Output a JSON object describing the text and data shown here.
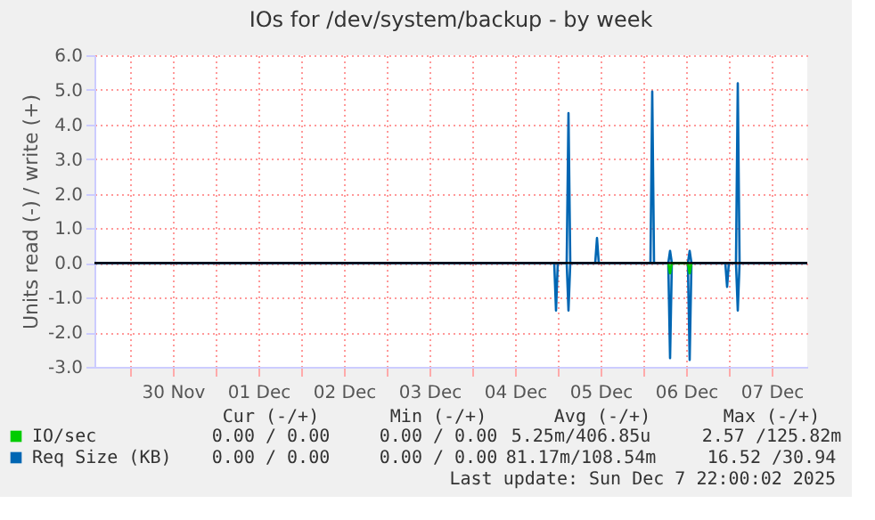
{
  "chart_data": {
    "type": "line",
    "title": "IOs for /dev/system/backup - by week",
    "ylabel": "Units read (-) / write (+)",
    "x": [
      "2025-11-29T14:00",
      "2025-12-04T23:00",
      "2025-12-04T23:30",
      "2025-12-05T00:00",
      "2025-12-05T02:30",
      "2025-12-05T03:00",
      "2025-12-05T03:30",
      "2025-12-05T10:30",
      "2025-12-05T11:00",
      "2025-12-05T11:30",
      "2025-12-06T02:00",
      "2025-12-06T02:30",
      "2025-12-06T03:00",
      "2025-12-06T07:00",
      "2025-12-06T07:30",
      "2025-12-06T08:00",
      "2025-12-06T12:30",
      "2025-12-06T13:00",
      "2025-12-06T13:30",
      "2025-12-06T23:00",
      "2025-12-06T23:30",
      "2025-12-07T00:00",
      "2025-12-07T02:00",
      "2025-12-07T02:30",
      "2025-12-07T03:00",
      "2025-12-07T22:00"
    ],
    "series": [
      {
        "name": "Req Size (KB)",
        "color": "#0066b3",
        "values": [
          0,
          0,
          0,
          0,
          0,
          4.33,
          0,
          0,
          0.72,
          0,
          0,
          4.95,
          0,
          0,
          0.35,
          0,
          0,
          0.35,
          0,
          0,
          0,
          0,
          0,
          5.19,
          0,
          0
        ]
      },
      {
        "color": "#0066b3",
        "values": [
          0,
          0,
          -1.37,
          0,
          0,
          -1.37,
          0,
          0,
          0,
          0,
          0,
          0,
          0,
          0,
          -2.75,
          0,
          0,
          -2.8,
          0,
          0,
          -0.69,
          0,
          0,
          -1.37,
          0,
          0
        ]
      },
      {
        "name": "IO/sec",
        "color": "#00cc00",
        "values": [
          null,
          null,
          null,
          null,
          null,
          null,
          null,
          null,
          null,
          null,
          null,
          null,
          null,
          0,
          -0.3,
          0,
          0,
          -0.3,
          0,
          null,
          null,
          null,
          null,
          null,
          null,
          null
        ]
      }
    ],
    "xlim": [
      "2025-11-29T14:00",
      "2025-12-07T22:00"
    ],
    "xticks": [
      {
        "value": "2025-11-30T00:00",
        "label": null
      },
      {
        "value": "2025-11-30T12:00",
        "label": "30 Nov"
      },
      {
        "value": "2025-12-01T00:00",
        "label": null
      },
      {
        "value": "2025-12-01T12:00",
        "label": "01 Dec"
      },
      {
        "value": "2025-12-02T00:00",
        "label": null
      },
      {
        "value": "2025-12-02T12:00",
        "label": "02 Dec"
      },
      {
        "value": "2025-12-03T00:00",
        "label": null
      },
      {
        "value": "2025-12-03T12:00",
        "label": "03 Dec"
      },
      {
        "value": "2025-12-04T00:00",
        "label": null
      },
      {
        "value": "2025-12-04T12:00",
        "label": "04 Dec"
      },
      {
        "value": "2025-12-05T00:00",
        "label": null
      },
      {
        "value": "2025-12-05T12:00",
        "label": "05 Dec"
      },
      {
        "value": "2025-12-06T00:00",
        "label": null
      },
      {
        "value": "2025-12-06T12:00",
        "label": "06 Dec"
      },
      {
        "value": "2025-12-07T00:00",
        "label": null
      },
      {
        "value": "2025-12-07T12:00",
        "label": "07 Dec"
      }
    ],
    "ylim": [
      -3,
      6
    ],
    "yticks": [
      {
        "value": -3,
        "label": "-3.0"
      },
      {
        "value": -2,
        "label": "-2.0"
      },
      {
        "value": -1,
        "label": "-1.0"
      },
      {
        "value": 0,
        "label": "0.0"
      },
      {
        "value": 1,
        "label": "1.0"
      },
      {
        "value": 2,
        "label": "2.0"
      },
      {
        "value": 3,
        "label": "3.0"
      },
      {
        "value": 4,
        "label": "4.0"
      },
      {
        "value": 5,
        "label": "5.0"
      },
      {
        "value": 6,
        "label": "6.0"
      }
    ],
    "ref_lines": [
      {
        "axis": "y",
        "value": 0,
        "color": "#000000"
      }
    ],
    "grid": true,
    "legend": "bottom",
    "annotations": [
      "Cur (-/+)",
      "Min (-/+)",
      "Avg (-/+)",
      "Max (-/+)",
      "0.00 / 0.00",
      "0.00 / 0.00",
      "5.25m/406.85u",
      "2.57 /125.82m",
      "0.00 / 0.00",
      "0.00 / 0.00",
      "81.17m/108.54m",
      "16.52 /30.94",
      "Last update: Sun Dec  7 22:00:02 2025"
    ]
  }
}
